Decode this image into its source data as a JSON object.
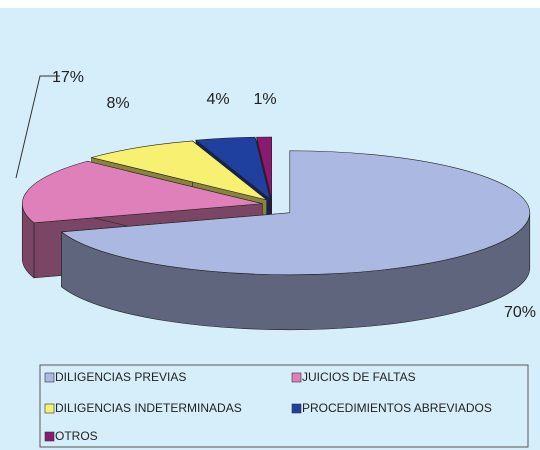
{
  "chart_data": {
    "type": "pie",
    "categories": [
      "DILIGENCIAS PREVIAS",
      "JUICIOS DE FALTAS",
      "DILIGENCIAS INDETERMINADAS",
      "PROCEDIMIENTOS ABREVIADOS",
      "OTROS"
    ],
    "values": [
      70,
      17,
      8,
      4,
      1
    ],
    "value_labels": [
      "70%",
      "17%",
      "8%",
      "4%",
      "1%"
    ],
    "colors": [
      "#aab8e2",
      "#e080ba",
      "#f8f070",
      "#2040a0",
      "#8a1a70"
    ]
  }
}
